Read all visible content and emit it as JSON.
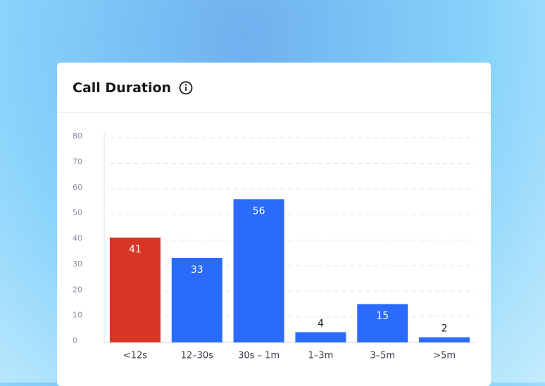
{
  "header": {
    "title": "Call Duration"
  },
  "chart_data": {
    "type": "bar",
    "categories": [
      "<12s",
      "12–30s",
      "30s – 1m",
      "1–3m",
      "3–5m",
      ">5m"
    ],
    "values": [
      41,
      33,
      56,
      4,
      15,
      2
    ],
    "colors": [
      "#d93526",
      "#2b6bfc",
      "#2b6bfc",
      "#2b6bfc",
      "#2b6bfc",
      "#2b6bfc"
    ],
    "ylim": [
      0,
      80
    ],
    "yticks": [
      0,
      10,
      20,
      30,
      40,
      50,
      60,
      70,
      80
    ],
    "grid": true
  }
}
